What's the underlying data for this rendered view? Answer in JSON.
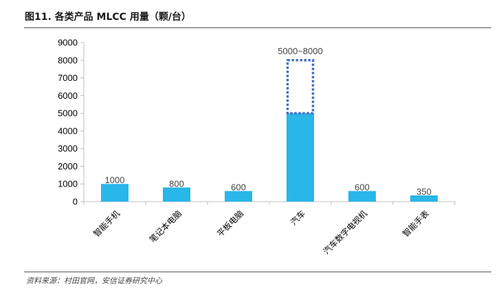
{
  "header": {
    "title": "图11. 各类产品 MLCC 用量（颗/台）"
  },
  "footer": {
    "source": "资料来源：村田官网，安信证券研究中心"
  },
  "colors": {
    "bar": "#29b6e8",
    "range_box": "#4472c4",
    "axis": "#bfbfbf"
  },
  "chart_data": {
    "type": "bar",
    "title": "",
    "xlabel": "",
    "ylabel": "",
    "ylim": [
      0,
      9000
    ],
    "yticks": [
      0,
      1000,
      2000,
      3000,
      4000,
      5000,
      6000,
      7000,
      8000,
      9000
    ],
    "categories": [
      "智能手机",
      "笔记本电脑",
      "平板电脑",
      "汽车",
      "汽车数字电视机",
      "智能手表"
    ],
    "values": [
      1000,
      800,
      600,
      5000,
      600,
      350
    ],
    "data_labels": [
      "1000",
      "800",
      "600",
      "5000~8000",
      "600",
      "350"
    ],
    "range_band": {
      "category": "汽车",
      "low": 5000,
      "high": 8000
    },
    "legend": "none",
    "grid": false
  }
}
